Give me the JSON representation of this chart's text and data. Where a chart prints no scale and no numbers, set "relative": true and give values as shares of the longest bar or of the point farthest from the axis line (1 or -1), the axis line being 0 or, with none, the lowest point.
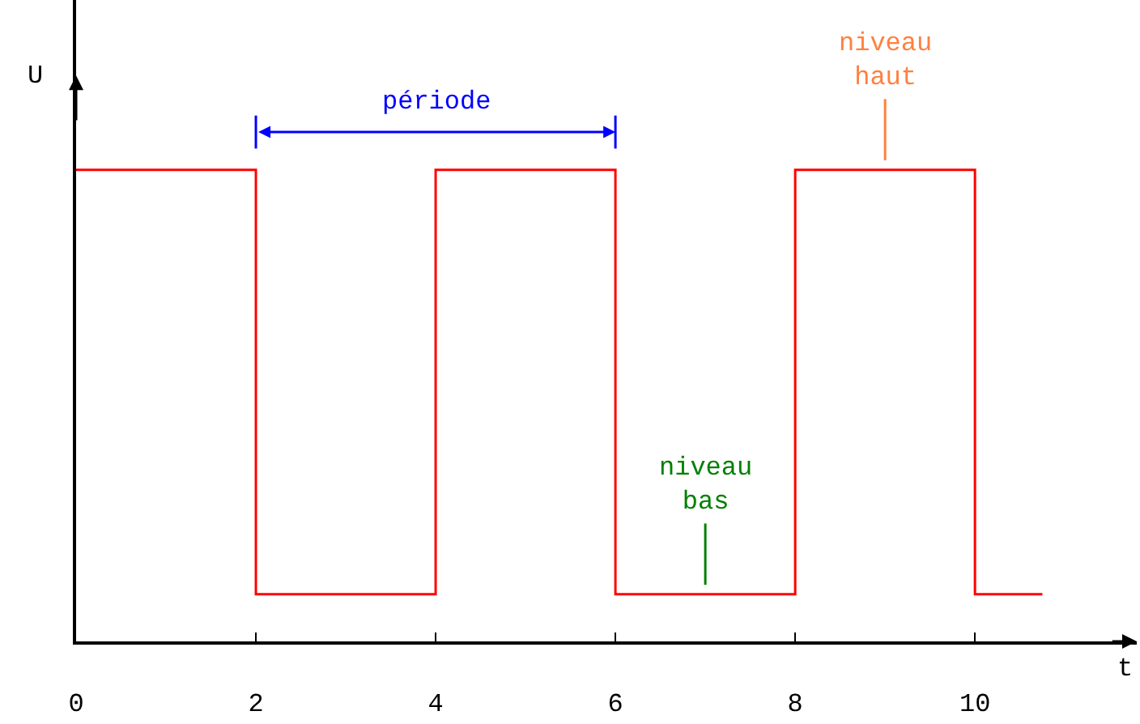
{
  "chart_data": {
    "type": "step",
    "relative": true,
    "xlabel": "t",
    "ylabel": "U",
    "x": [
      0,
      2,
      4,
      6,
      8,
      10,
      10.75
    ],
    "series": [
      {
        "color": "#ff0000",
        "values": [
          1,
          0.1,
          1,
          0.1,
          1,
          0.1,
          0.1
        ]
      }
    ],
    "xlim": [
      0,
      11.8
    ],
    "xticks": [
      0,
      2,
      4,
      6,
      8,
      10
    ],
    "tick_labels": "x",
    "marker": "none",
    "line_style": "solid",
    "annotations": [
      "période",
      "niveau\nbas",
      "niveau\nhaut"
    ]
  }
}
